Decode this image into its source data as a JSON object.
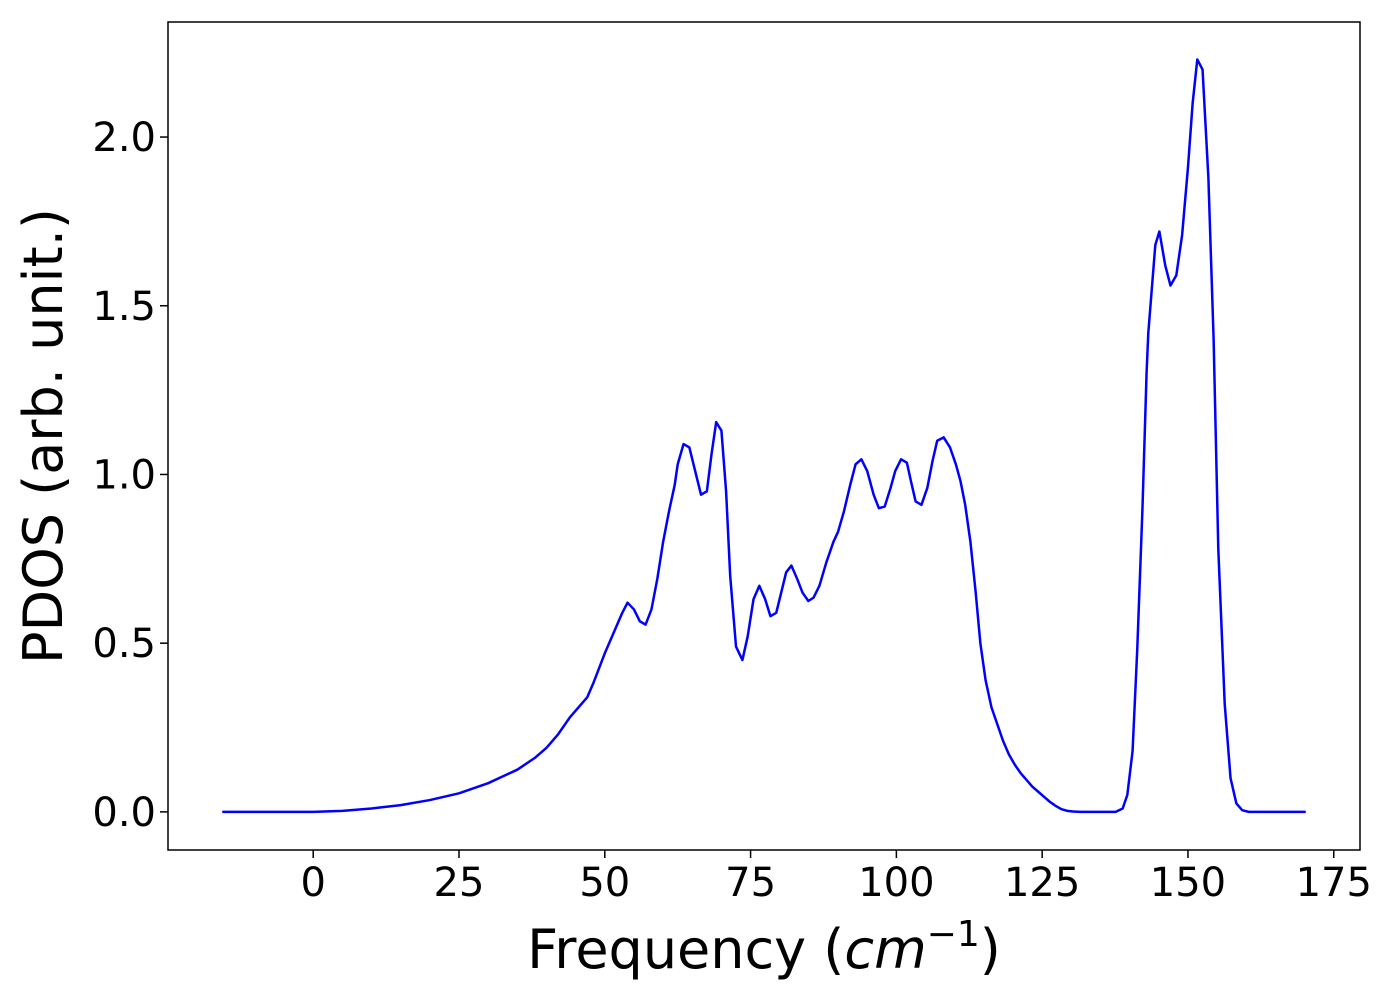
{
  "chart_data": {
    "type": "line",
    "xlabel": {
      "text": "Frequency (",
      "math": "cm",
      "sup": "−1",
      "close": ")"
    },
    "ylabel": "PDOS (arb. unit.)",
    "x": [
      -15.6,
      -10,
      -5,
      0,
      5,
      10,
      15,
      20,
      25,
      30,
      35,
      38,
      40,
      42,
      44,
      46,
      47,
      48,
      50,
      52,
      53,
      53.9,
      55,
      56,
      57,
      58,
      59,
      60,
      61,
      62,
      62.5,
      63.5,
      64.5,
      65.5,
      66.5,
      67.5,
      68.3,
      69.1,
      70,
      70.8,
      71.5,
      72.5,
      73.6,
      74.5,
      75.5,
      76.5,
      77.5,
      78.4,
      79.4,
      81.1,
      82,
      83,
      83.9,
      84.9,
      85.8,
      86.8,
      88,
      89.2,
      90,
      91,
      92.1,
      93,
      94,
      95,
      96.1,
      97,
      98,
      99,
      99.8,
      100.8,
      101.8,
      102.5,
      103.3,
      104.3,
      105.3,
      106.2,
      107,
      108.1,
      109.2,
      110.2,
      111,
      111.8,
      112.7,
      113.6,
      114.4,
      115.3,
      116.3,
      117.3,
      118.3,
      119.3,
      120.3,
      121.3,
      122.3,
      123.3,
      124.3,
      125.3,
      126.3,
      127.3,
      128.3,
      129.3,
      130.3,
      131.5,
      137.6,
      138.8,
      139.6,
      140.5,
      141.3,
      142.2,
      142.9,
      143.2,
      144.4,
      145.1,
      146.1,
      147,
      148,
      149,
      150,
      150.8,
      151.6,
      152.5,
      153.5,
      154.4,
      155.2,
      156.3,
      157.3,
      158.3,
      159.3,
      160.4,
      165,
      170.2
    ],
    "series": [
      {
        "name": "PDOS",
        "color": "#0000ff",
        "values": [
          0,
          0,
          0,
          0,
          0.003,
          0.01,
          0.02,
          0.035,
          0.055,
          0.085,
          0.125,
          0.16,
          0.19,
          0.23,
          0.28,
          0.32,
          0.34,
          0.38,
          0.47,
          0.55,
          0.59,
          0.62,
          0.6,
          0.565,
          0.555,
          0.6,
          0.69,
          0.8,
          0.89,
          0.97,
          1.03,
          1.09,
          1.08,
          1.01,
          0.94,
          0.95,
          1.06,
          1.155,
          1.13,
          0.95,
          0.7,
          0.49,
          0.45,
          0.52,
          0.63,
          0.67,
          0.63,
          0.58,
          0.59,
          0.71,
          0.73,
          0.69,
          0.65,
          0.625,
          0.635,
          0.67,
          0.74,
          0.8,
          0.83,
          0.89,
          0.97,
          1.03,
          1.045,
          1.01,
          0.94,
          0.9,
          0.905,
          0.96,
          1.01,
          1.045,
          1.035,
          0.98,
          0.92,
          0.91,
          0.96,
          1.04,
          1.1,
          1.11,
          1.08,
          1.03,
          0.98,
          0.91,
          0.8,
          0.65,
          0.5,
          0.39,
          0.31,
          0.26,
          0.21,
          0.17,
          0.14,
          0.115,
          0.095,
          0.075,
          0.06,
          0.045,
          0.03,
          0.018,
          0.008,
          0.003,
          0.001,
          0,
          0,
          0.01,
          0.05,
          0.18,
          0.48,
          0.9,
          1.3,
          1.42,
          1.68,
          1.72,
          1.62,
          1.56,
          1.59,
          1.71,
          1.91,
          2.1,
          2.23,
          2.2,
          1.88,
          1.4,
          0.78,
          0.32,
          0.1,
          0.025,
          0.005,
          0,
          0,
          0
        ]
      }
    ],
    "xlim": [
      -24.9,
      179.5
    ],
    "ylim": [
      -0.113,
      2.341
    ],
    "xticks": [
      0,
      25,
      50,
      75,
      100,
      125,
      150,
      175
    ],
    "yticks": [
      {
        "value": 0,
        "label": "0.0"
      },
      {
        "value": 0.5,
        "label": "0.5"
      },
      {
        "value": 1,
        "label": "1.0"
      },
      {
        "value": 1.5,
        "label": "1.5"
      },
      {
        "value": 2,
        "label": "2.0"
      }
    ],
    "grid": false
  }
}
